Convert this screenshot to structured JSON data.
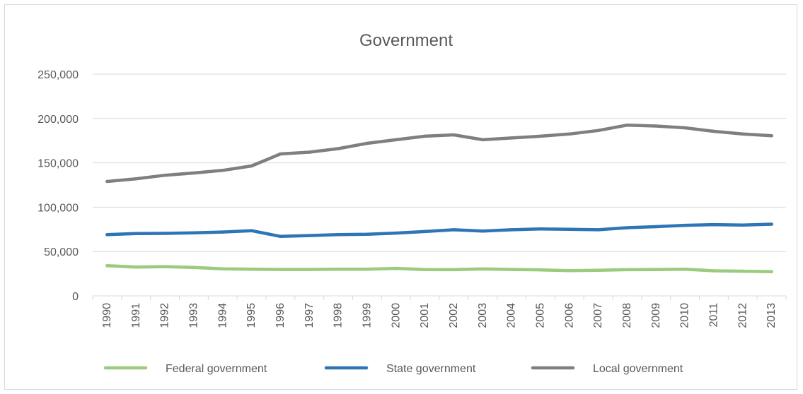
{
  "chart_data": {
    "type": "line",
    "title": "Government",
    "xlabel": "",
    "ylabel": "",
    "categories": [
      "1990",
      "1991",
      "1992",
      "1993",
      "1994",
      "1995",
      "1996",
      "1997",
      "1998",
      "1999",
      "2000",
      "2001",
      "2002",
      "2003",
      "2004",
      "2005",
      "2006",
      "2007",
      "2008",
      "2009",
      "2010",
      "2011",
      "2012",
      "2013"
    ],
    "ylim": [
      0,
      250000
    ],
    "yticks": [
      0,
      50000,
      100000,
      150000,
      200000,
      250000
    ],
    "ytick_labels": [
      "0",
      "50,000",
      "100,000",
      "150,000",
      "200,000",
      "250,000"
    ],
    "grid": true,
    "legend_position": "bottom",
    "series": [
      {
        "name": "Federal government",
        "color": "#9bcb7c",
        "values": [
          34000,
          32500,
          33000,
          32000,
          30500,
          30000,
          29800,
          29800,
          30000,
          30000,
          31000,
          29700,
          29500,
          30300,
          29800,
          29300,
          28500,
          28800,
          29500,
          29700,
          30000,
          28300,
          27800,
          27200
        ]
      },
      {
        "name": "State government",
        "color": "#2e75b6",
        "values": [
          69000,
          70200,
          70500,
          71000,
          72000,
          73500,
          67000,
          68000,
          69000,
          69500,
          70800,
          72500,
          74500,
          73000,
          74500,
          75500,
          75000,
          74500,
          76800,
          78000,
          79500,
          80300,
          79800,
          80800
        ]
      },
      {
        "name": "Local government",
        "color": "#7f7f7f",
        "values": [
          129000,
          132000,
          136000,
          138500,
          141500,
          146500,
          160000,
          162000,
          166000,
          172000,
          176000,
          180000,
          181500,
          176000,
          178000,
          180000,
          182500,
          186500,
          192500,
          191500,
          189500,
          185500,
          182500,
          180500
        ]
      }
    ]
  }
}
